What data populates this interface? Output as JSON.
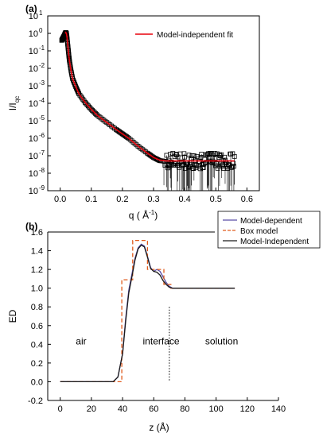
{
  "chart_data": [
    {
      "type": "scatter",
      "panel_label": "(a)",
      "xlabel": "q ( Å",
      "xlabel_sup": "-1",
      "xlabel_close": ")",
      "ylabel_main": "I/I",
      "ylabel_sub": "qc",
      "log_y": true,
      "xlim": [
        -0.04,
        0.64
      ],
      "ylim_log10": [
        -9,
        1
      ],
      "xticks": [
        "0.0",
        "0.1",
        "0.2",
        "0.3",
        "0.4",
        "0.5",
        "0.6"
      ],
      "xtick_values": [
        0.0,
        0.1,
        0.2,
        0.3,
        0.4,
        0.5,
        0.6
      ],
      "ytick_exponents": [
        1,
        0,
        -1,
        -2,
        -3,
        -4,
        -5,
        -6,
        -7,
        -8,
        -9
      ],
      "ytick_base": "10",
      "legend": {
        "label": "Model-independent fit",
        "color": "#e8000b",
        "placement": "top-right"
      },
      "series": [
        {
          "marker": "open-square",
          "color": "#000000",
          "x": [
            0.005,
            0.008,
            0.011,
            0.014,
            0.016,
            0.018,
            0.02,
            0.022,
            0.024,
            0.026,
            0.028,
            0.03,
            0.035,
            0.04,
            0.05,
            0.06,
            0.08,
            0.1,
            0.12,
            0.15,
            0.18,
            0.2,
            0.22,
            0.25,
            0.28,
            0.3,
            0.32,
            0.34,
            0.36,
            0.38,
            0.4,
            0.42,
            0.44,
            0.46,
            0.48,
            0.5,
            0.52,
            0.54,
            0.56
          ],
          "log10_y": [
            -0.4,
            -0.3,
            -0.2,
            -0.1,
            0.0,
            0.05,
            0.0,
            -0.25,
            -0.6,
            -0.95,
            -1.3,
            -1.6,
            -2.15,
            -2.6,
            -3.05,
            -3.45,
            -3.95,
            -4.35,
            -4.7,
            -5.1,
            -5.5,
            -5.75,
            -6.0,
            -6.45,
            -6.85,
            -7.1,
            -7.28,
            -7.32,
            -7.3,
            -7.3,
            -7.3,
            -7.3,
            -7.3,
            -7.3,
            -7.3,
            -7.3,
            -7.3,
            -7.3,
            -7.3
          ]
        },
        {
          "name": "Model-independent fit",
          "line": true,
          "color": "#e8000b",
          "x": [
            0.016,
            0.018,
            0.02,
            0.022,
            0.024,
            0.026,
            0.028,
            0.03,
            0.035,
            0.04,
            0.05,
            0.06,
            0.08,
            0.1,
            0.12,
            0.15,
            0.18,
            0.2,
            0.22,
            0.25,
            0.28,
            0.3,
            0.32,
            0.34,
            0.36,
            0.4,
            0.45,
            0.5,
            0.55,
            0.56
          ],
          "log10_y": [
            0.0,
            0.05,
            0.0,
            -0.25,
            -0.6,
            -0.95,
            -1.3,
            -1.6,
            -2.15,
            -2.6,
            -3.05,
            -3.45,
            -3.95,
            -4.35,
            -4.7,
            -5.1,
            -5.5,
            -5.75,
            -6.0,
            -6.45,
            -6.85,
            -7.1,
            -7.25,
            -7.3,
            -7.3,
            -7.3,
            -7.3,
            -7.3,
            -7.3,
            -7.3
          ]
        }
      ]
    },
    {
      "type": "line",
      "panel_label": "(b)",
      "xlabel": "z (Å)",
      "ylabel": "ED",
      "xlim": [
        -8,
        140
      ],
      "ylim": [
        -0.2,
        1.6
      ],
      "xticks": [
        "0",
        "20",
        "40",
        "60",
        "80",
        "100",
        "120",
        "140"
      ],
      "xtick_values": [
        0,
        20,
        40,
        60,
        80,
        100,
        120,
        140
      ],
      "yticks": [
        "-0.2",
        "0.0",
        "0.2",
        "0.4",
        "0.6",
        "0.8",
        "1.0",
        "1.2",
        "1.4",
        "1.6"
      ],
      "ytick_values": [
        -0.2,
        0.0,
        0.2,
        0.4,
        0.6,
        0.8,
        1.0,
        1.2,
        1.4,
        1.6
      ],
      "legend_placement": "top-right",
      "annotations": [
        {
          "text": "air",
          "x": 10,
          "y": 0.4
        },
        {
          "text": "interface",
          "x": 53,
          "y": 0.4
        },
        {
          "text": "solution",
          "x": 93,
          "y": 0.4
        }
      ],
      "divider": {
        "x": 70,
        "y_from": 0.0,
        "y_to": 0.8
      },
      "series": [
        {
          "name": "Model-dependent",
          "color": "#5b4ea8",
          "dash": "solid",
          "x": [
            0,
            34,
            37,
            40,
            42,
            44,
            46,
            48,
            50,
            52,
            54,
            56,
            58,
            60,
            62,
            64,
            66,
            68,
            70,
            72,
            75,
            80,
            90,
            112
          ],
          "y": [
            0,
            0,
            0.05,
            0.3,
            0.68,
            0.98,
            1.15,
            1.32,
            1.43,
            1.47,
            1.45,
            1.34,
            1.22,
            1.18,
            1.2,
            1.18,
            1.12,
            1.06,
            1.02,
            1.0,
            1.0,
            1.0,
            1.0,
            1.0
          ]
        },
        {
          "name": "Box model",
          "color": "#e05a1c",
          "dash": "dashed",
          "x": [
            0,
            39.5,
            39.5,
            41,
            41,
            46.5,
            46.5,
            56,
            56,
            66.5,
            66.5,
            71,
            71,
            112
          ],
          "y": [
            0,
            0,
            1.09,
            1.09,
            1.09,
            1.09,
            1.51,
            1.51,
            1.2,
            1.2,
            1.04,
            1.04,
            1.0,
            1.0
          ]
        },
        {
          "name": "Model-Independent",
          "color": "#1a1a1a",
          "dash": "solid",
          "x": [
            0,
            34,
            37,
            40,
            42,
            44,
            46,
            48,
            50,
            52,
            54,
            56,
            58,
            60,
            62,
            64,
            66,
            68,
            70,
            72,
            75,
            80,
            90,
            112
          ],
          "y": [
            0,
            0,
            0.05,
            0.3,
            0.65,
            0.95,
            1.12,
            1.3,
            1.42,
            1.46,
            1.44,
            1.33,
            1.21,
            1.18,
            1.17,
            1.14,
            1.08,
            1.04,
            1.01,
            1.0,
            1.0,
            1.0,
            1.0,
            1.0
          ]
        }
      ]
    }
  ]
}
